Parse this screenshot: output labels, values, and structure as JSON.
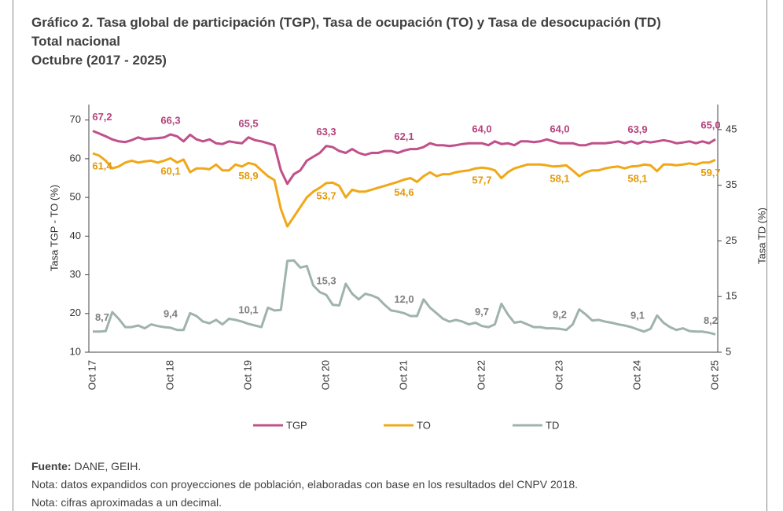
{
  "header": {
    "title": "Gráfico 2. Tasa global de participación (TGP), Tasa de ocupación (TO) y Tasa de desocupación (TD)",
    "subtitle": "Total nacional",
    "period": "Octubre (2017 - 2025)"
  },
  "chart_data": {
    "type": "line",
    "categories": [
      "Oct 17",
      null,
      null,
      null,
      null,
      null,
      null,
      null,
      null,
      null,
      null,
      null,
      "Oct 18",
      null,
      null,
      null,
      null,
      null,
      null,
      null,
      null,
      null,
      null,
      null,
      "Oct 19",
      null,
      null,
      null,
      null,
      null,
      null,
      null,
      null,
      null,
      null,
      null,
      "Oct 20",
      null,
      null,
      null,
      null,
      null,
      null,
      null,
      null,
      null,
      null,
      null,
      "Oct 21",
      null,
      null,
      null,
      null,
      null,
      null,
      null,
      null,
      null,
      null,
      null,
      "Oct 22",
      null,
      null,
      null,
      null,
      null,
      null,
      null,
      null,
      null,
      null,
      null,
      "Oct 23",
      null,
      null,
      null,
      null,
      null,
      null,
      null,
      null,
      null,
      null,
      null,
      "Oct 24",
      null,
      null,
      null,
      null,
      null,
      null,
      null,
      null,
      null,
      null,
      null,
      "Oct 25"
    ],
    "ylabel": "Tasa TGP - TO (%)",
    "y2label": "Tasa TD (%)",
    "ylim": [
      10,
      74
    ],
    "yticks": [
      10,
      20,
      30,
      40,
      50,
      60,
      70
    ],
    "y2lim": [
      5,
      49.5
    ],
    "y2ticks": [
      5,
      15,
      25,
      35,
      45
    ],
    "legend": "bottom",
    "series": [
      {
        "name": "TGP",
        "color": "#c0508a",
        "label_color": "#b5437d",
        "values": [
          67.2,
          66.5,
          65.8,
          65.0,
          64.5,
          64.3,
          64.8,
          65.5,
          65.0,
          65.2,
          65.3,
          65.5,
          66.3,
          65.8,
          64.5,
          66.2,
          65.0,
          64.5,
          65.0,
          64.0,
          63.8,
          64.5,
          64.2,
          64.0,
          65.5,
          64.8,
          64.5,
          64.0,
          63.5,
          57.0,
          53.5,
          56.0,
          57.0,
          59.5,
          60.5,
          61.5,
          63.3,
          63.0,
          62.0,
          61.5,
          62.5,
          61.5,
          61.0,
          61.5,
          61.5,
          62.0,
          62.0,
          61.5,
          62.1,
          62.5,
          62.5,
          63.0,
          64.0,
          63.5,
          63.5,
          63.3,
          63.5,
          63.8,
          64.0,
          64.0,
          64.0,
          63.5,
          64.5,
          63.8,
          64.0,
          63.5,
          64.5,
          64.5,
          64.3,
          64.5,
          65.0,
          64.5,
          64.0,
          64.0,
          64.0,
          63.5,
          63.5,
          64.0,
          64.0,
          64.0,
          64.2,
          64.5,
          64.0,
          64.5,
          63.9,
          64.5,
          64.2,
          64.5,
          64.8,
          64.5,
          64.0,
          64.2,
          64.5,
          64.0,
          64.5,
          64.0,
          65.0
        ],
        "value_labels": [
          "67,2",
          null,
          null,
          null,
          null,
          null,
          null,
          null,
          null,
          null,
          null,
          null,
          "66,3",
          null,
          null,
          null,
          null,
          null,
          null,
          null,
          null,
          null,
          null,
          null,
          "65,5",
          null,
          null,
          null,
          null,
          null,
          null,
          null,
          null,
          null,
          null,
          null,
          "63,3",
          null,
          null,
          null,
          null,
          null,
          null,
          null,
          null,
          null,
          null,
          null,
          "62,1",
          null,
          null,
          null,
          null,
          null,
          null,
          null,
          null,
          null,
          null,
          null,
          "64,0",
          null,
          null,
          null,
          null,
          null,
          null,
          null,
          null,
          null,
          null,
          null,
          "64,0",
          null,
          null,
          null,
          null,
          null,
          null,
          null,
          null,
          null,
          null,
          null,
          "63,9",
          null,
          null,
          null,
          null,
          null,
          null,
          null,
          null,
          null,
          null,
          null,
          "65,0"
        ]
      },
      {
        "name": "TO",
        "color": "#f0a818",
        "label_color": "#e39a0c",
        "values": [
          61.4,
          60.8,
          59.5,
          57.5,
          58.0,
          59.0,
          59.5,
          59.0,
          59.3,
          59.5,
          59.0,
          59.5,
          60.1,
          59.0,
          59.8,
          56.5,
          57.5,
          57.5,
          57.3,
          58.5,
          57.0,
          57.0,
          58.5,
          58.0,
          58.9,
          58.5,
          57.0,
          55.5,
          54.5,
          47.0,
          42.5,
          45.0,
          47.5,
          50.0,
          51.5,
          52.5,
          53.7,
          53.8,
          53.0,
          50.0,
          52.0,
          51.5,
          51.5,
          52.0,
          52.5,
          53.0,
          53.5,
          54.0,
          54.6,
          55.0,
          54.0,
          55.5,
          56.5,
          55.5,
          56.0,
          56.0,
          56.5,
          56.8,
          57.0,
          57.5,
          57.7,
          57.5,
          57.0,
          55.0,
          56.5,
          57.5,
          58.0,
          58.5,
          58.5,
          58.5,
          58.3,
          58.0,
          58.1,
          58.3,
          57.0,
          55.5,
          56.5,
          57.0,
          57.0,
          57.5,
          57.8,
          58.0,
          57.5,
          58.0,
          58.1,
          58.5,
          58.3,
          56.8,
          58.5,
          58.5,
          58.3,
          58.5,
          58.8,
          58.5,
          59.0,
          59.0,
          59.7
        ],
        "value_labels": [
          "61,4",
          null,
          null,
          null,
          null,
          null,
          null,
          null,
          null,
          null,
          null,
          null,
          "60,1",
          null,
          null,
          null,
          null,
          null,
          null,
          null,
          null,
          null,
          null,
          null,
          "58,9",
          null,
          null,
          null,
          null,
          null,
          null,
          null,
          null,
          null,
          null,
          null,
          "53,7",
          null,
          null,
          null,
          null,
          null,
          null,
          null,
          null,
          null,
          null,
          null,
          "54,6",
          null,
          null,
          null,
          null,
          null,
          null,
          null,
          null,
          null,
          null,
          null,
          "57,7",
          null,
          null,
          null,
          null,
          null,
          null,
          null,
          null,
          null,
          null,
          null,
          "58,1",
          null,
          null,
          null,
          null,
          null,
          null,
          null,
          null,
          null,
          null,
          null,
          "58,1",
          null,
          null,
          null,
          null,
          null,
          null,
          null,
          null,
          null,
          null,
          null,
          "59,7"
        ]
      },
      {
        "name": "TD",
        "color": "#9fb3ac",
        "label_color": "#7f7f7f",
        "axis": "y2",
        "values": [
          8.7,
          8.7,
          8.8,
          12.2,
          11.0,
          9.5,
          9.5,
          9.8,
          9.3,
          10.0,
          9.7,
          9.5,
          9.4,
          9.0,
          9.0,
          12.0,
          11.5,
          10.5,
          10.2,
          10.8,
          10.0,
          11.0,
          10.8,
          10.5,
          10.1,
          9.8,
          9.5,
          13.0,
          12.5,
          12.6,
          21.4,
          21.5,
          20.2,
          20.5,
          17.0,
          15.8,
          15.3,
          13.5,
          13.4,
          17.3,
          15.5,
          14.5,
          15.5,
          15.2,
          14.7,
          13.5,
          12.5,
          12.3,
          12.0,
          11.5,
          11.5,
          14.5,
          13.0,
          12.0,
          11.0,
          10.5,
          10.8,
          10.5,
          10.0,
          10.3,
          9.7,
          9.5,
          10.0,
          13.7,
          11.8,
          10.3,
          10.5,
          10.0,
          9.5,
          9.5,
          9.3,
          9.3,
          9.2,
          9.0,
          10.0,
          12.7,
          11.8,
          10.7,
          10.8,
          10.5,
          10.3,
          10.0,
          9.8,
          9.5,
          9.1,
          8.7,
          9.2,
          11.6,
          10.3,
          9.5,
          9.0,
          9.3,
          8.8,
          8.7,
          8.7,
          8.5,
          8.2
        ],
        "value_labels": [
          "8,7",
          null,
          null,
          null,
          null,
          null,
          null,
          null,
          null,
          null,
          null,
          null,
          "9,4",
          null,
          null,
          null,
          null,
          null,
          null,
          null,
          null,
          null,
          null,
          null,
          "10,1",
          null,
          null,
          null,
          null,
          null,
          null,
          null,
          null,
          null,
          null,
          null,
          "15,3",
          null,
          null,
          null,
          null,
          null,
          null,
          null,
          null,
          null,
          null,
          null,
          "12,0",
          null,
          null,
          null,
          null,
          null,
          null,
          null,
          null,
          null,
          null,
          null,
          "9,7",
          null,
          null,
          null,
          null,
          null,
          null,
          null,
          null,
          null,
          null,
          null,
          "9,2",
          null,
          null,
          null,
          null,
          null,
          null,
          null,
          null,
          null,
          null,
          null,
          "9,1",
          null,
          null,
          null,
          null,
          null,
          null,
          null,
          null,
          null,
          null,
          null,
          "8,2"
        ]
      }
    ]
  },
  "footer": {
    "source_label": "Fuente:",
    "source_text": " DANE, GEIH.",
    "notes": [
      "Nota: datos expandidos con proyecciones de población, elaboradas con base en los resultados del CNPV 2018.",
      "Nota: cifras aproximadas a un decimal."
    ]
  }
}
